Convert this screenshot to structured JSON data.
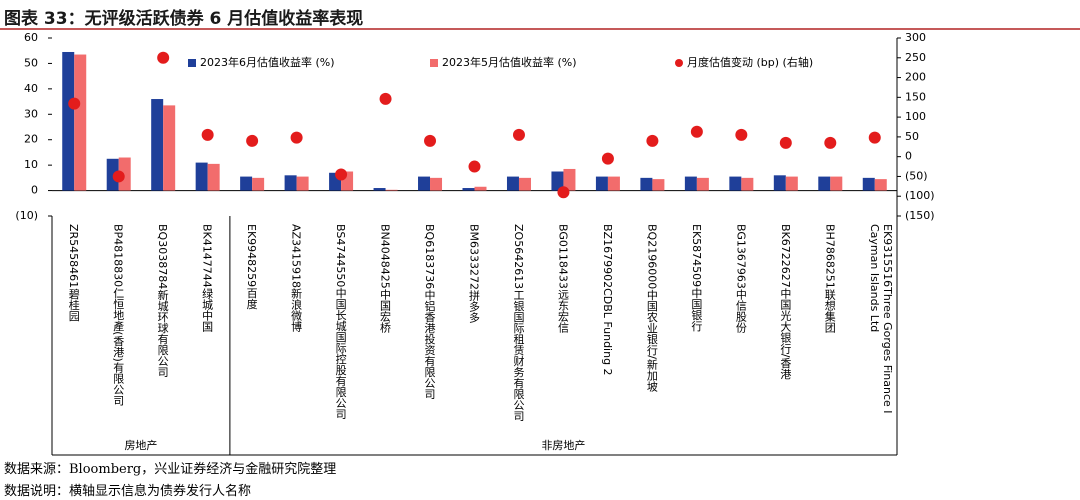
{
  "chart_data": {
    "type": "bar",
    "title": "图表 33：无评级活跃债券 6 月估值收益率表现",
    "notes": [
      "数据来源：Bloomberg，兴业证券经济与金融研究院整理",
      "数据说明：横轴显示信息为债券发行人名称"
    ],
    "categories": [
      "ZR5458461碧桂园",
      "BP4818830仁恒地產(香港)有限公司",
      "BQ3038784新城环球有限公司",
      "BK4147744绿城中国",
      "EK9948259百度",
      "AZ3415918新浪微博",
      "BS4744550中国长城国际控股有限公司",
      "BN4048425中国宏桥",
      "BQ6183736中铝香港投资有限公司",
      "BM6333272拼多多",
      "ZO5642613工银国际租赁财务有限公司",
      "BG0118433远东宏信",
      "BZ1679902CDBL Funding 2",
      "BQ2196000中国农业银行/新加坡",
      "EK5874509中国银行",
      "BG1367963中信股份",
      "BK6722627中国光大银行/香港",
      "BH7868251联想集团",
      "EK9315516Three Gorges Finance I Cayman Islands Ltd"
    ],
    "groups": [
      {
        "label": "房地产",
        "count": 4
      },
      {
        "label": "非房地产",
        "count": 15
      }
    ],
    "series": [
      {
        "name": "2023年6月估值收益率 (%)",
        "color": "#1f3f99",
        "values": [
          54.5,
          12.5,
          36,
          11,
          5.5,
          6,
          7,
          1,
          5.5,
          1,
          5.5,
          7.5,
          5.5,
          5,
          5.5,
          5.5,
          6,
          5.5,
          5
        ]
      },
      {
        "name": "2023年5月估值收益率 (%)",
        "color": "#f26c6c",
        "values": [
          53.5,
          13,
          33.5,
          10.5,
          5,
          5.5,
          7.5,
          0.3,
          5,
          1.5,
          5,
          8.5,
          5.5,
          4.5,
          5,
          5,
          5.5,
          5.5,
          4.5
        ]
      },
      {
        "name": "月度估值变动 (bp) (右轴)",
        "color": "#e31c1c",
        "axis": "y2",
        "type": "scatter",
        "values": [
          134,
          -50,
          250,
          55,
          40,
          48,
          -45,
          146,
          40,
          -25,
          55,
          -90,
          -5,
          40,
          63,
          55,
          35,
          35,
          48
        ]
      }
    ],
    "ylim": [
      -10,
      60
    ],
    "yticks": [
      {
        "value": -10,
        "label": "(10)"
      },
      0,
      10,
      20,
      30,
      40,
      50,
      60
    ],
    "y2lim": [
      -150,
      300
    ],
    "y2ticks": [
      {
        "value": -150,
        "label": "(150)"
      },
      {
        "value": -100,
        "label": "(100)"
      },
      {
        "value": -50,
        "label": "(50)"
      },
      0,
      50,
      100,
      150,
      200,
      250,
      300
    ],
    "tick_label_color": "#c00000"
  }
}
